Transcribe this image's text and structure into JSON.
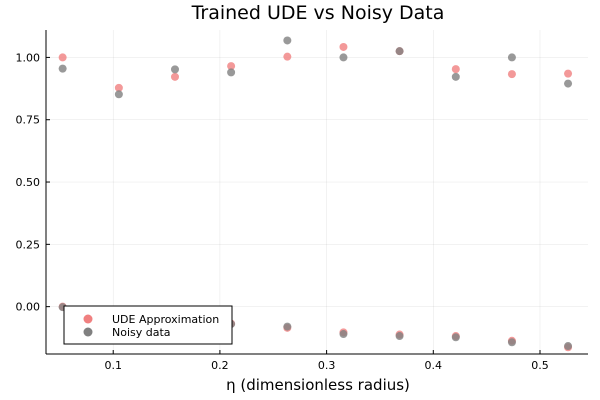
{
  "chart_data": {
    "type": "scatter",
    "title": "Trained UDE vs Noisy Data",
    "xlabel": "η (dimensionless radius)",
    "ylabel": "",
    "xlim": [
      0.037,
      0.545
    ],
    "ylim": [
      -0.19,
      1.11
    ],
    "xticks": [
      0.1,
      0.2,
      0.3,
      0.4,
      0.5
    ],
    "xtick_labels": [
      "0.1",
      "0.2",
      "0.3",
      "0.4",
      "0.5"
    ],
    "yticks": [
      0.0,
      0.25,
      0.5,
      0.75,
      1.0
    ],
    "ytick_labels": [
      "0.00",
      "0.25",
      "0.50",
      "0.75",
      "1.00"
    ],
    "grid": true,
    "legend_position": "bottom-left",
    "series": [
      {
        "name": "UDE Approximation",
        "color": "#f08080",
        "points": [
          {
            "x": 0.0526,
            "y": 1.0
          },
          {
            "x": 0.1053,
            "y": 0.878
          },
          {
            "x": 0.1579,
            "y": 0.922
          },
          {
            "x": 0.2105,
            "y": 0.965
          },
          {
            "x": 0.2632,
            "y": 1.003
          },
          {
            "x": 0.3158,
            "y": 1.042
          },
          {
            "x": 0.3684,
            "y": 1.025
          },
          {
            "x": 0.4211,
            "y": 0.953
          },
          {
            "x": 0.4737,
            "y": 0.933
          },
          {
            "x": 0.5263,
            "y": 0.935
          },
          {
            "x": 0.0526,
            "y": 0.0
          },
          {
            "x": 0.1053,
            "y": -0.032
          },
          {
            "x": 0.1579,
            "y": -0.055
          },
          {
            "x": 0.2105,
            "y": -0.068
          },
          {
            "x": 0.2632,
            "y": -0.085
          },
          {
            "x": 0.3158,
            "y": -0.103
          },
          {
            "x": 0.3684,
            "y": -0.112
          },
          {
            "x": 0.4211,
            "y": -0.118
          },
          {
            "x": 0.4737,
            "y": -0.137
          },
          {
            "x": 0.5263,
            "y": -0.163
          }
        ]
      },
      {
        "name": "Noisy data",
        "color": "#808080",
        "points": [
          {
            "x": 0.0526,
            "y": 0.955
          },
          {
            "x": 0.1053,
            "y": 0.852
          },
          {
            "x": 0.1579,
            "y": 0.952
          },
          {
            "x": 0.2105,
            "y": 0.94
          },
          {
            "x": 0.2632,
            "y": 1.068
          },
          {
            "x": 0.3158,
            "y": 1.0
          },
          {
            "x": 0.3684,
            "y": 1.025
          },
          {
            "x": 0.4211,
            "y": 0.922
          },
          {
            "x": 0.4737,
            "y": 1.0
          },
          {
            "x": 0.5263,
            "y": 0.895
          },
          {
            "x": 0.0526,
            "y": -0.002
          },
          {
            "x": 0.1053,
            "y": -0.045
          },
          {
            "x": 0.1579,
            "y": -0.06
          },
          {
            "x": 0.2105,
            "y": -0.07
          },
          {
            "x": 0.2632,
            "y": -0.08
          },
          {
            "x": 0.3158,
            "y": -0.11
          },
          {
            "x": 0.3684,
            "y": -0.118
          },
          {
            "x": 0.4211,
            "y": -0.123
          },
          {
            "x": 0.4737,
            "y": -0.143
          },
          {
            "x": 0.5263,
            "y": -0.158
          }
        ]
      }
    ]
  }
}
